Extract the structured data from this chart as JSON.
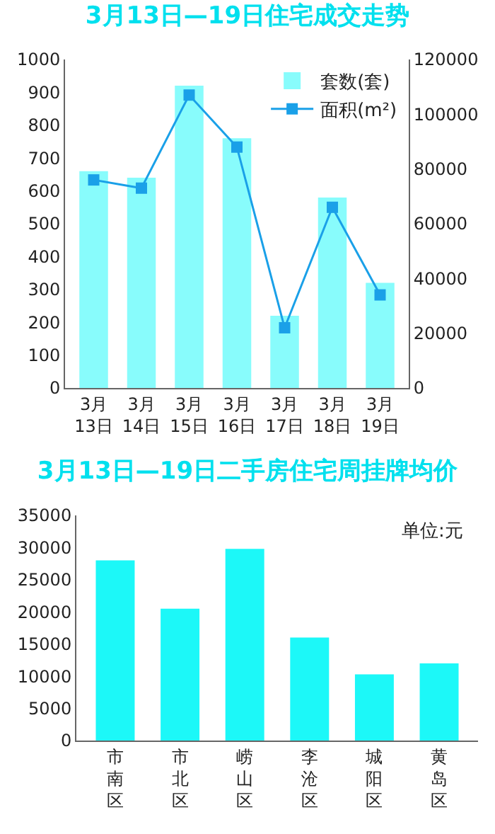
{
  "chart_data": [
    {
      "type": "bar",
      "title": "3月13日—19日住宅成交走势",
      "categories": [
        "3月\n13日",
        "3月\n14日",
        "3月\n15日",
        "3月\n16日",
        "3月\n17日",
        "3月\n18日",
        "3月\n19日"
      ],
      "series": [
        {
          "name": "套数(套)",
          "type": "bar",
          "color": "#88fcfc",
          "values": [
            660,
            640,
            920,
            760,
            220,
            580,
            320
          ]
        },
        {
          "name": "面积(m²)",
          "type": "line",
          "axis": "y2",
          "color": "#1aa0e8",
          "values": [
            76000,
            73000,
            107000,
            88000,
            22000,
            66000,
            34000
          ]
        }
      ],
      "ylim": [
        0,
        1000
      ],
      "yticks": [
        0,
        100,
        200,
        300,
        400,
        500,
        600,
        700,
        800,
        900,
        1000
      ],
      "y2lim": [
        0,
        120000
      ],
      "y2ticks": [
        0,
        20000,
        40000,
        60000,
        80000,
        100000,
        120000
      ],
      "legend": "top right",
      "marker": "square",
      "grid": false
    },
    {
      "type": "bar",
      "title": "3月13日—19日二手房住宅周挂牌均价",
      "categories": [
        "市南区",
        "市北区",
        "崂山区",
        "李沧区",
        "城阳区",
        "黄岛区"
      ],
      "color": "#1cf8f8",
      "values": [
        28000,
        20500,
        29800,
        16000,
        10300,
        12000
      ],
      "ylim": [
        0,
        35000
      ],
      "yticks": [
        0,
        5000,
        10000,
        15000,
        20000,
        25000,
        30000,
        35000
      ],
      "annotations": [
        "单位:元"
      ],
      "grid": false
    }
  ]
}
